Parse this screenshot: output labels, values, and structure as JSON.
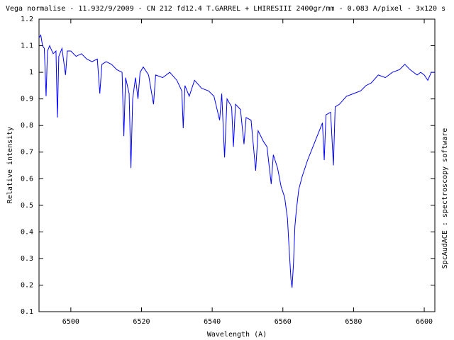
{
  "chart_data": {
    "type": "line",
    "title": "Vega normalise - 11.932/9/2009 - CN 212 fd12.4 T.GARREL + LHIRESIII 2400gr/mm - 0.083 A/pixel - 3x120 s",
    "x_label": "Wavelength (A)",
    "y_label": "Relative intensity",
    "side_label": "SpcAudACE : spectroscopy software",
    "color": "#0000ff",
    "x": [
      6491.0,
      6491.5,
      6492.0,
      6492.5,
      6493.0,
      6493.4,
      6494.0,
      6495.0,
      6495.8,
      6496.2,
      6496.6,
      6497.5,
      6498.5,
      6499.0,
      6500.0,
      6501.5,
      6503.0,
      6504.5,
      6506.0,
      6507.5,
      6508.2,
      6508.8,
      6510.0,
      6511.5,
      6513.0,
      6514.5,
      6515.0,
      6515.5,
      6516.5,
      6517.0,
      6517.5,
      6518.3,
      6519.0,
      6519.6,
      6520.5,
      6522.0,
      6523.4,
      6524.0,
      6526.0,
      6528.0,
      6530.0,
      6531.4,
      6531.8,
      6532.3,
      6533.5,
      6535.0,
      6537.0,
      6539.0,
      6540.5,
      6542.1,
      6542.7,
      6543.5,
      6544.2,
      6545.5,
      6546.0,
      6546.6,
      6548.0,
      6549.0,
      6549.6,
      6551.0,
      6552.3,
      6553.0,
      6554.5,
      6555.5,
      6556.7,
      6557.3,
      6558.5,
      6559.5,
      6560.5,
      6561.3,
      6561.8,
      6562.3,
      6562.6,
      6563.0,
      6563.4,
      6563.8,
      6564.5,
      6565.5,
      6567.0,
      6568.5,
      6570.0,
      6571.2,
      6571.7,
      6572.2,
      6573.5,
      6574.3,
      6574.8,
      6576.0,
      6578.0,
      6580.0,
      6582.0,
      6583.5,
      6585.0,
      6587.0,
      6589.0,
      6591.0,
      6593.0,
      6594.5,
      6596.0,
      6598.0,
      6599.0,
      6600.0,
      6601.0,
      6602.0,
      6603.0
    ],
    "values": [
      1.13,
      1.14,
      1.1,
      1.09,
      0.91,
      1.08,
      1.1,
      1.07,
      1.08,
      0.83,
      1.06,
      1.09,
      0.99,
      1.08,
      1.08,
      1.06,
      1.07,
      1.05,
      1.04,
      1.05,
      0.92,
      1.03,
      1.04,
      1.03,
      1.01,
      1.0,
      0.76,
      0.98,
      0.92,
      0.64,
      0.9,
      0.98,
      0.9,
      1.0,
      1.02,
      0.99,
      0.88,
      0.99,
      0.98,
      1.0,
      0.97,
      0.93,
      0.79,
      0.95,
      0.91,
      0.97,
      0.94,
      0.93,
      0.91,
      0.82,
      0.92,
      0.68,
      0.9,
      0.87,
      0.72,
      0.88,
      0.86,
      0.73,
      0.83,
      0.82,
      0.63,
      0.78,
      0.74,
      0.72,
      0.58,
      0.69,
      0.64,
      0.57,
      0.53,
      0.45,
      0.33,
      0.22,
      0.19,
      0.28,
      0.42,
      0.48,
      0.56,
      0.61,
      0.67,
      0.72,
      0.77,
      0.81,
      0.67,
      0.84,
      0.85,
      0.65,
      0.87,
      0.88,
      0.91,
      0.92,
      0.93,
      0.95,
      0.96,
      0.99,
      0.98,
      1.0,
      1.01,
      1.03,
      1.01,
      0.99,
      1.0,
      0.99,
      0.97,
      1.0,
      1.0
    ],
    "xlim": [
      6491,
      6603
    ],
    "xticks": [
      6500,
      6520,
      6540,
      6560,
      6580,
      6600
    ],
    "ylim": [
      0.1,
      1.2
    ],
    "yticks": [
      0.1,
      0.2,
      0.3,
      0.4,
      0.5,
      0.6,
      0.7,
      0.8,
      0.9,
      1,
      1.1,
      1.2
    ]
  }
}
